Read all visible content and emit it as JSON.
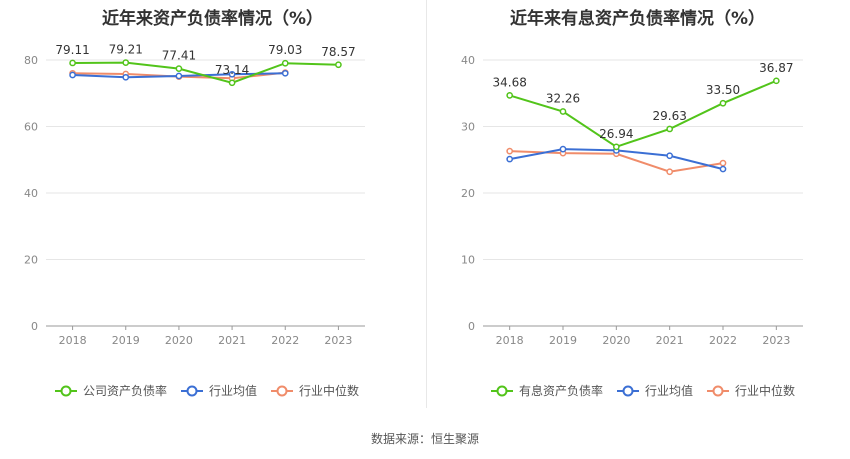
{
  "source": {
    "label": "数据来源：",
    "value": "恒生聚源"
  },
  "chart_data": [
    {
      "type": "line",
      "title": "近年来资产负债率情况（%）",
      "xlabel": "",
      "ylabel": "",
      "categories": [
        "2018",
        "2019",
        "2020",
        "2021",
        "2022",
        "2023"
      ],
      "ylim": [
        0,
        80
      ],
      "yticks": [
        0,
        20,
        40,
        60,
        80
      ],
      "grid": true,
      "legend_position": "bottom",
      "series": [
        {
          "name": "公司资产负债率",
          "color": "#52c41a",
          "labels": true,
          "values": [
            79.11,
            79.21,
            77.41,
            73.14,
            79.03,
            78.57
          ]
        },
        {
          "name": "行业均值",
          "color": "#3b6fd4",
          "labels": false,
          "values": [
            75.5,
            74.8,
            75.2,
            75.7,
            76.0,
            null
          ]
        },
        {
          "name": "行业中位数",
          "color": "#f08c6a",
          "labels": false,
          "values": [
            76.0,
            75.8,
            75.0,
            74.5,
            76.2,
            null
          ]
        }
      ]
    },
    {
      "type": "line",
      "title": "近年来有息资产负债率情况（%）",
      "xlabel": "",
      "ylabel": "",
      "categories": [
        "2018",
        "2019",
        "2020",
        "2021",
        "2022",
        "2023"
      ],
      "ylim": [
        0,
        40
      ],
      "yticks": [
        0,
        10,
        20,
        30,
        40
      ],
      "grid": true,
      "legend_position": "bottom",
      "series": [
        {
          "name": "有息资产负债率",
          "color": "#52c41a",
          "labels": true,
          "values": [
            34.68,
            32.26,
            26.94,
            29.63,
            33.5,
            36.87
          ]
        },
        {
          "name": "行业均值",
          "color": "#3b6fd4",
          "labels": false,
          "values": [
            25.1,
            26.6,
            26.4,
            25.6,
            23.6,
            null
          ]
        },
        {
          "name": "行业中位数",
          "color": "#f08c6a",
          "labels": false,
          "values": [
            26.3,
            26.0,
            25.9,
            23.2,
            24.5,
            null
          ]
        }
      ]
    }
  ]
}
